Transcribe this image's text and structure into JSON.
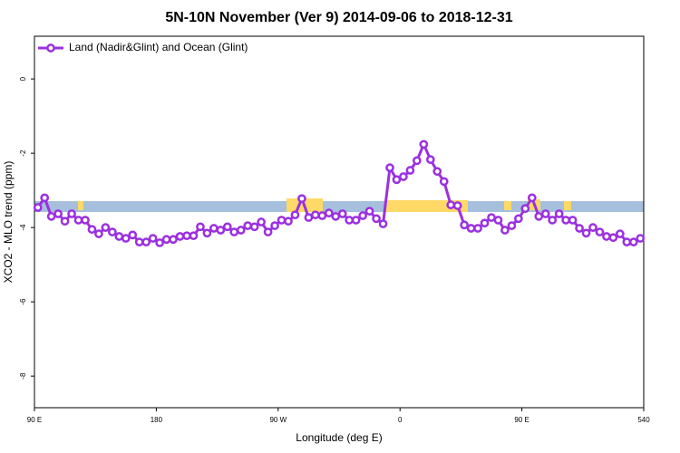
{
  "chart_data": {
    "type": "line",
    "title": "5N-10N November (Ver 9)   2014-09-06 to 2018-12-31",
    "x_label": "Longitude (deg E)",
    "y_label": "XCO2 - MLO trend (ppm)",
    "xlim": [
      90,
      540
    ],
    "ylim": [
      -8.85,
      1.15
    ],
    "xticks": [
      {
        "value": 90,
        "label": "90 E"
      },
      180,
      {
        "value": 270,
        "label": "90 W"
      },
      {
        "value": 360,
        "label": "0"
      },
      {
        "value": 450,
        "label": "90 E"
      },
      540
    ],
    "yticks": [
      0,
      -2,
      -4,
      -6,
      -8
    ],
    "legend": "upper left",
    "x": [
      92.5,
      97.5,
      102.5,
      107.5,
      112.5,
      117.5,
      122.5,
      127.5,
      132.5,
      137.5,
      142.5,
      147.5,
      152.5,
      157.5,
      162.5,
      167.5,
      172.5,
      177.5,
      182.5,
      187.5,
      192.5,
      197.5,
      202.5,
      207.5,
      212.5,
      217.5,
      222.5,
      227.5,
      232.5,
      237.5,
      242.5,
      247.5,
      252.5,
      257.5,
      262.5,
      267.5,
      272.5,
      277.5,
      282.5,
      287.5,
      292.5,
      297.5,
      302.5,
      307.5,
      312.5,
      317.5,
      322.5,
      327.5,
      332.5,
      337.5,
      342.5,
      347.5,
      352.5,
      357.5,
      362.5,
      367.5,
      372.5,
      377.5,
      382.5,
      387.5,
      392.5,
      397.5,
      402.5,
      407.5,
      412.5,
      417.5,
      422.5,
      427.5,
      432.5,
      437.5,
      442.5,
      447.5,
      452.5,
      457.5,
      462.5,
      467.5,
      472.5,
      477.5,
      482.5,
      487.5,
      492.5,
      497.5,
      502.5,
      507.5,
      512.5,
      517.5,
      522.5,
      527.5,
      532.5,
      537.5
    ],
    "series": [
      {
        "name": "Land (Nadir&Glint) and Ocean (Glint)",
        "color": "#9b30e0",
        "values": [
          -3.46,
          -3.2,
          -3.7,
          -3.63,
          -3.83,
          -3.63,
          -3.8,
          -3.8,
          -4.05,
          -4.17,
          -4.0,
          -4.12,
          -4.24,
          -4.29,
          -4.2,
          -4.39,
          -4.39,
          -4.29,
          -4.41,
          -4.32,
          -4.32,
          -4.24,
          -4.22,
          -4.22,
          -3.98,
          -4.15,
          -4.02,
          -4.07,
          -3.98,
          -4.12,
          -4.07,
          -3.95,
          -3.98,
          -3.85,
          -4.12,
          -3.95,
          -3.8,
          -3.83,
          -3.66,
          -3.22,
          -3.73,
          -3.66,
          -3.68,
          -3.61,
          -3.7,
          -3.63,
          -3.8,
          -3.8,
          -3.68,
          -3.56,
          -3.76,
          -3.9,
          -2.39,
          -2.71,
          -2.63,
          -2.46,
          -2.2,
          -1.76,
          -2.17,
          -2.49,
          -2.76,
          -3.39,
          -3.41,
          -3.93,
          -4.02,
          -4.02,
          -3.88,
          -3.73,
          -3.8,
          -4.07,
          -3.95,
          -3.76,
          -3.49,
          -3.2,
          -3.7,
          -3.63,
          -3.8,
          -3.63,
          -3.8,
          -3.8,
          -4.02,
          -4.15,
          -4.0,
          -4.12,
          -4.24,
          -4.27,
          -4.17,
          -4.39,
          -4.39,
          -4.29
        ]
      }
    ]
  }
}
